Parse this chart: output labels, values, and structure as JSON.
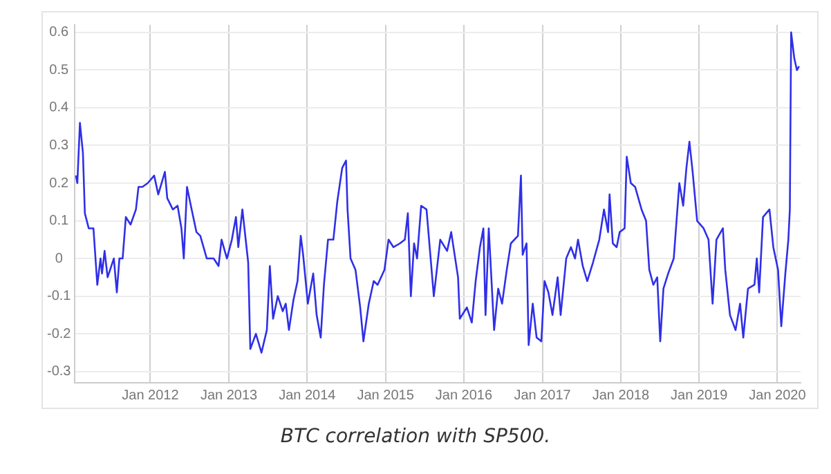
{
  "chart_data": {
    "type": "line",
    "annotations": [
      "BTC correlation with SP500."
    ],
    "x": [
      "2011-01-19",
      "2011-01-26",
      "2011-02-07",
      "2011-02-21",
      "2011-03-02",
      "2011-03-20",
      "2011-04-11",
      "2011-04-29",
      "2011-05-14",
      "2011-05-21",
      "2011-06-02",
      "2011-06-16",
      "2011-07-15",
      "2011-07-29",
      "2011-08-10",
      "2011-08-25",
      "2011-09-09",
      "2011-10-01",
      "2011-10-26",
      "2011-11-07",
      "2011-11-25",
      "2011-12-20",
      "2012-01-19",
      "2012-02-07",
      "2012-03-09",
      "2012-03-20",
      "2012-04-15",
      "2012-05-07",
      "2012-05-25",
      "2012-06-05",
      "2012-06-20",
      "2012-07-08",
      "2012-08-03",
      "2012-08-21",
      "2012-09-20",
      "2012-10-22",
      "2012-11-14",
      "2012-11-28",
      "2012-12-23",
      "2013-01-15",
      "2013-02-03",
      "2013-02-14",
      "2013-03-05",
      "2013-04-01",
      "2013-04-11",
      "2013-05-07",
      "2013-06-02",
      "2013-06-27",
      "2013-07-11",
      "2013-07-26",
      "2013-08-17",
      "2013-09-09",
      "2013-09-23",
      "2013-10-08",
      "2013-10-29",
      "2013-11-17",
      "2013-12-02",
      "2013-12-13",
      "2014-01-04",
      "2014-01-29",
      "2014-02-14",
      "2014-03-05",
      "2014-03-20",
      "2014-04-08",
      "2014-05-03",
      "2014-05-21",
      "2014-06-13",
      "2014-07-01",
      "2014-07-08",
      "2014-07-22",
      "2014-08-14",
      "2014-09-05",
      "2014-09-20",
      "2014-10-15",
      "2014-11-07",
      "2014-11-25",
      "2014-12-27",
      "2015-01-15",
      "2015-02-07",
      "2015-03-09",
      "2015-04-01",
      "2015-04-15",
      "2015-04-29",
      "2015-05-14",
      "2015-05-28",
      "2015-06-16",
      "2015-07-11",
      "2015-08-14",
      "2015-09-13",
      "2015-10-15",
      "2015-11-03",
      "2015-12-05",
      "2015-12-13",
      "2016-01-15",
      "2016-02-07",
      "2016-02-25",
      "2016-03-16",
      "2016-04-01",
      "2016-04-11",
      "2016-04-26",
      "2016-05-21",
      "2016-06-09",
      "2016-06-27",
      "2016-07-19",
      "2016-08-07",
      "2016-09-09",
      "2016-09-23",
      "2016-10-01",
      "2016-10-19",
      "2016-10-29",
      "2016-11-17",
      "2016-12-05",
      "2016-12-27",
      "2017-01-11",
      "2017-01-29",
      "2017-02-17",
      "2017-03-13",
      "2017-03-27",
      "2017-04-22",
      "2017-05-14",
      "2017-06-02",
      "2017-06-16",
      "2017-07-08",
      "2017-07-29",
      "2017-08-25",
      "2017-09-23",
      "2017-10-15",
      "2017-11-03",
      "2017-11-10",
      "2017-11-25",
      "2017-12-13",
      "2017-12-27",
      "2018-01-19",
      "2018-01-29",
      "2018-02-17",
      "2018-03-09",
      "2018-04-08",
      "2018-04-29",
      "2018-05-14",
      "2018-06-02",
      "2018-06-20",
      "2018-07-04",
      "2018-07-19",
      "2018-08-10",
      "2018-09-05",
      "2018-10-01",
      "2018-10-19",
      "2018-11-03",
      "2018-11-17",
      "2018-12-02",
      "2018-12-23",
      "2019-01-22",
      "2019-02-14",
      "2019-03-05",
      "2019-03-23",
      "2019-04-22",
      "2019-05-03",
      "2019-05-25",
      "2019-06-20",
      "2019-07-11",
      "2019-07-26",
      "2019-08-17",
      "2019-09-16",
      "2019-09-27",
      "2019-10-08",
      "2019-10-26",
      "2019-11-25",
      "2019-12-13",
      "2020-01-04",
      "2020-01-19",
      "2020-02-07",
      "2020-02-21",
      "2020-02-28",
      "2020-03-05",
      "2020-03-20",
      "2020-04-01",
      "2020-04-11"
    ],
    "series": [
      {
        "color": "#2f2fe8",
        "values": [
          0.22,
          0.2,
          0.36,
          0.28,
          0.12,
          0.08,
          0.08,
          -0.07,
          0.0,
          -0.04,
          0.02,
          -0.05,
          0.0,
          -0.09,
          0.0,
          0.0,
          0.11,
          0.09,
          0.13,
          0.19,
          0.19,
          0.2,
          0.22,
          0.17,
          0.23,
          0.16,
          0.13,
          0.14,
          0.08,
          0.0,
          0.19,
          0.14,
          0.07,
          0.06,
          0.0,
          0.0,
          -0.02,
          0.05,
          0.0,
          0.05,
          0.11,
          0.03,
          0.13,
          -0.01,
          -0.24,
          -0.2,
          -0.25,
          -0.19,
          -0.02,
          -0.16,
          -0.1,
          -0.14,
          -0.12,
          -0.19,
          -0.11,
          -0.06,
          0.06,
          0.01,
          -0.12,
          -0.04,
          -0.15,
          -0.21,
          -0.07,
          0.05,
          0.05,
          0.15,
          0.24,
          0.26,
          0.13,
          0.0,
          -0.03,
          -0.13,
          -0.22,
          -0.12,
          -0.06,
          -0.07,
          -0.03,
          0.05,
          0.03,
          0.04,
          0.05,
          0.12,
          -0.1,
          0.04,
          0.0,
          0.14,
          0.13,
          -0.1,
          0.05,
          0.02,
          0.07,
          -0.05,
          -0.16,
          -0.13,
          -0.17,
          -0.06,
          0.03,
          0.08,
          -0.15,
          0.08,
          -0.19,
          -0.08,
          -0.12,
          -0.03,
          0.04,
          0.06,
          0.22,
          0.01,
          0.04,
          -0.23,
          -0.12,
          -0.21,
          -0.22,
          -0.06,
          -0.09,
          -0.15,
          -0.05,
          -0.15,
          0.0,
          0.03,
          0.0,
          0.05,
          -0.02,
          -0.06,
          -0.01,
          0.05,
          0.13,
          0.07,
          0.17,
          0.04,
          0.03,
          0.07,
          0.08,
          0.27,
          0.2,
          0.19,
          0.13,
          0.1,
          -0.03,
          -0.07,
          -0.05,
          -0.22,
          -0.08,
          -0.04,
          0.0,
          0.2,
          0.14,
          0.24,
          0.31,
          0.23,
          0.1,
          0.08,
          0.05,
          -0.12,
          0.05,
          0.08,
          -0.03,
          -0.15,
          -0.19,
          -0.12,
          -0.21,
          -0.08,
          -0.07,
          0.0,
          -0.09,
          0.11,
          0.13,
          0.03,
          -0.03,
          -0.18,
          -0.04,
          0.05,
          0.13,
          0.6,
          0.53,
          0.5,
          0.51
        ]
      }
    ],
    "xlim": [
      "2011-01-15",
      "2020-04-18"
    ],
    "xticks": [
      {
        "value": "2012-01-01",
        "label": "Jan 2012"
      },
      {
        "value": "2013-01-01",
        "label": "Jan 2013"
      },
      {
        "value": "2014-01-01",
        "label": "Jan 2014"
      },
      {
        "value": "2015-01-01",
        "label": "Jan 2015"
      },
      {
        "value": "2016-01-01",
        "label": "Jan 2016"
      },
      {
        "value": "2017-01-01",
        "label": "Jan 2017"
      },
      {
        "value": "2018-01-01",
        "label": "Jan 2018"
      },
      {
        "value": "2019-01-01",
        "label": "Jan 2019"
      },
      {
        "value": "2020-01-01",
        "label": "Jan 2020"
      }
    ],
    "ylim": [
      -0.33,
      0.62
    ],
    "yticks": [
      -0.3,
      -0.2,
      -0.1,
      0,
      0.1,
      0.2,
      0.3,
      0.4,
      0.5,
      0.6
    ],
    "grid": true,
    "legend": false,
    "marker": "none",
    "line_style": "solid"
  }
}
